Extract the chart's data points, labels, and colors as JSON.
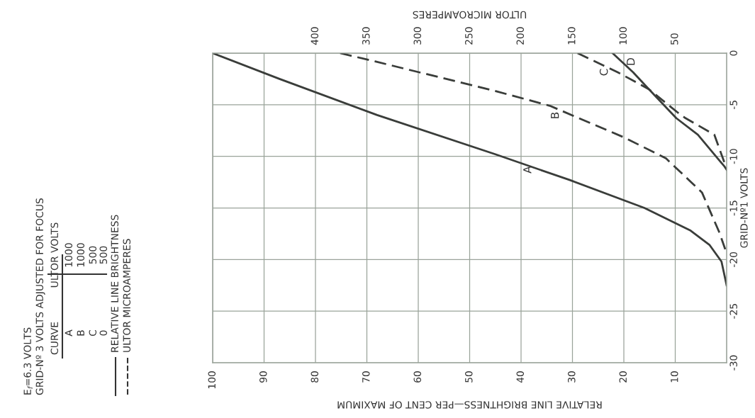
{
  "chart_data": {
    "type": "line",
    "xlabel": "RELATIVE LINE BRIGHTNESS—PER CENT OF MAXIMUM",
    "x2label": "ULTOR MICROAMPERES",
    "ylabel": "GRID-Nº1 VOLTS",
    "xlim": [
      100,
      0
    ],
    "xticks": [
      100,
      90,
      80,
      70,
      60,
      50,
      40,
      30,
      20,
      10
    ],
    "x2lim": [
      500,
      0
    ],
    "x2ticks": [
      400,
      350,
      300,
      250,
      200,
      150,
      100,
      50
    ],
    "ylim": [
      -30,
      0
    ],
    "yticks": [
      0,
      -5,
      -10,
      -15,
      -20,
      -25,
      -30
    ],
    "grid": true,
    "series": [
      {
        "color": "#3a3d3a",
        "line_style": "solid",
        "x": [
          100,
          87,
          68,
          45,
          30.5,
          16,
          7,
          3.3,
          1,
          0
        ],
        "values": [
          0,
          -2.5,
          -6,
          -9.8,
          -12.3,
          -15,
          -17.2,
          -18.6,
          -20.2,
          -22.5
        ]
      },
      {
        "color": "#3a3d3a",
        "line_style": "dashed",
        "axis": "x2",
        "x": [
          376,
          342,
          224,
          172,
          99,
          59,
          24,
          7,
          1.4,
          0
        ],
        "values": [
          0,
          -0.8,
          -3.7,
          -5.1,
          -8.2,
          -10.2,
          -13.5,
          -17.4,
          -19,
          -19.5
        ]
      },
      {
        "color": "#3a3d3a",
        "line_style": "dashed",
        "axis": "x2",
        "x": [
          145,
          106,
          75.6,
          47,
          40,
          12,
          0
        ],
        "values": [
          0,
          -1.85,
          -3.5,
          -5.8,
          -6.3,
          -7.9,
          -11.2
        ]
      },
      {
        "color": "#3a3d3a",
        "line_style": "solid",
        "axis": "x2",
        "x": [
          111,
          91,
          75.6,
          49,
          28,
          2,
          0
        ],
        "values": [
          0,
          -1.85,
          -3.5,
          -6.3,
          -7.9,
          -11,
          -11.3
        ]
      }
    ],
    "annotations": [
      {
        "text": "A",
        "x": 38.6,
        "y": -11.3
      },
      "B",
      "C",
      "D",
      "E$_{f}$=6.3 VOLTS",
      "GRID-Nº 3 VOLTS ADJUSTED FOR FOCUS",
      "CURVE",
      "ULTOR VOLTS",
      "A",
      "1000",
      "B",
      "1000",
      "C",
      "500",
      "0",
      "500",
      "RELATIVE LINE BRIGHTNESS",
      "ULTOR MICROAMPERES"
    ]
  }
}
